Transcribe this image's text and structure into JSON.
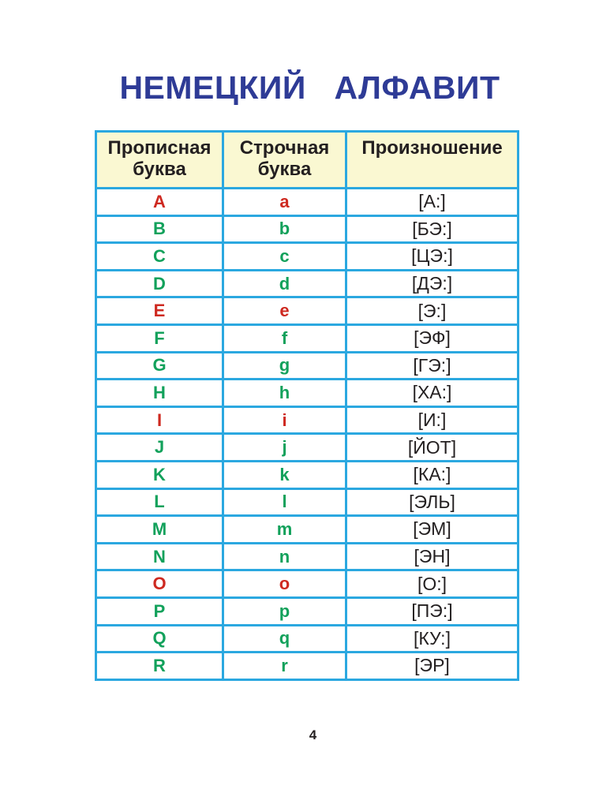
{
  "title": "НЕМЕЦКИЙ   АЛФАВИТ",
  "page_number": "4",
  "colors": {
    "title_blue": "#2E3B96",
    "table_border_cyan": "#2BA8E0",
    "header_background_cream": "#FAF8D2",
    "vowel_red": "#CE2920",
    "consonant_green": "#12A15B",
    "body_text_black": "#231F20"
  },
  "table": {
    "headers": [
      "Прописная буква",
      "Строчная буква",
      "Произношение"
    ],
    "rows": [
      {
        "upper": "A",
        "lower": "a",
        "pron": "[А:]",
        "color": "red"
      },
      {
        "upper": "B",
        "lower": "b",
        "pron": "[БЭ:]",
        "color": "green"
      },
      {
        "upper": "C",
        "lower": "c",
        "pron": "[ЦЭ:]",
        "color": "green"
      },
      {
        "upper": "D",
        "lower": "d",
        "pron": "[ДЭ:]",
        "color": "green"
      },
      {
        "upper": "E",
        "lower": "e",
        "pron": "[Э:]",
        "color": "red"
      },
      {
        "upper": "F",
        "lower": "f",
        "pron": "[ЭФ]",
        "color": "green"
      },
      {
        "upper": "G",
        "lower": "g",
        "pron": "[ГЭ:]",
        "color": "green"
      },
      {
        "upper": "H",
        "lower": "h",
        "pron": "[ХА:]",
        "color": "green"
      },
      {
        "upper": "I",
        "lower": "i",
        "pron": "[И:]",
        "color": "red"
      },
      {
        "upper": "J",
        "lower": "j",
        "pron": "[ЙОТ]",
        "color": "green"
      },
      {
        "upper": "K",
        "lower": "k",
        "pron": "[КА:]",
        "color": "green"
      },
      {
        "upper": "L",
        "lower": "l",
        "pron": "[ЭЛЬ]",
        "color": "green"
      },
      {
        "upper": "M",
        "lower": "m",
        "pron": "[ЭМ]",
        "color": "green"
      },
      {
        "upper": "N",
        "lower": "n",
        "pron": "[ЭН]",
        "color": "green"
      },
      {
        "upper": "O",
        "lower": "o",
        "pron": "[О:]",
        "color": "red"
      },
      {
        "upper": "P",
        "lower": "p",
        "pron": "[ПЭ:]",
        "color": "green"
      },
      {
        "upper": "Q",
        "lower": "q",
        "pron": "[КУ:]",
        "color": "green"
      },
      {
        "upper": "R",
        "lower": "r",
        "pron": "[ЭР]",
        "color": "green"
      }
    ]
  }
}
